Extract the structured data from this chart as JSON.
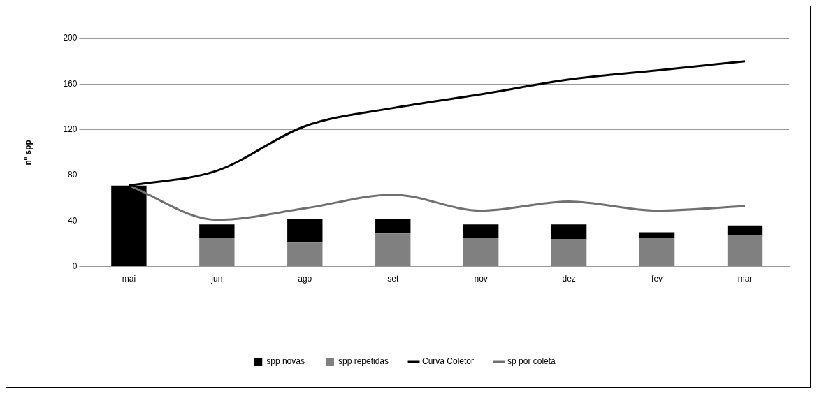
{
  "chart_data": {
    "type": "bar",
    "ylabel": "nº spp",
    "categories": [
      "mai",
      "jun",
      "ago",
      "set",
      "nov",
      "dez",
      "fev",
      "mar"
    ],
    "stacked": true,
    "series": [
      {
        "name": "spp repetidas",
        "color": "#808080",
        "values": [
          0,
          25,
          21,
          29,
          25,
          24,
          25,
          27
        ]
      },
      {
        "name": "spp novas",
        "color": "#000000",
        "values": [
          71,
          12,
          21,
          13,
          12,
          13,
          5,
          9
        ]
      },
      {
        "name": "Curva Coletor",
        "type": "line",
        "color": "#000000",
        "values": [
          71,
          84,
          123,
          139,
          151,
          164,
          172,
          180
        ]
      },
      {
        "name": "sp por coleta",
        "type": "line",
        "color": "#707070",
        "values": [
          71,
          41,
          51,
          63,
          49,
          57,
          49,
          53
        ]
      }
    ],
    "ylim": [
      0,
      200
    ],
    "yticks": [
      0,
      40,
      80,
      120,
      160,
      200
    ],
    "grid": "y",
    "legend": "bottom",
    "marker": "none"
  }
}
